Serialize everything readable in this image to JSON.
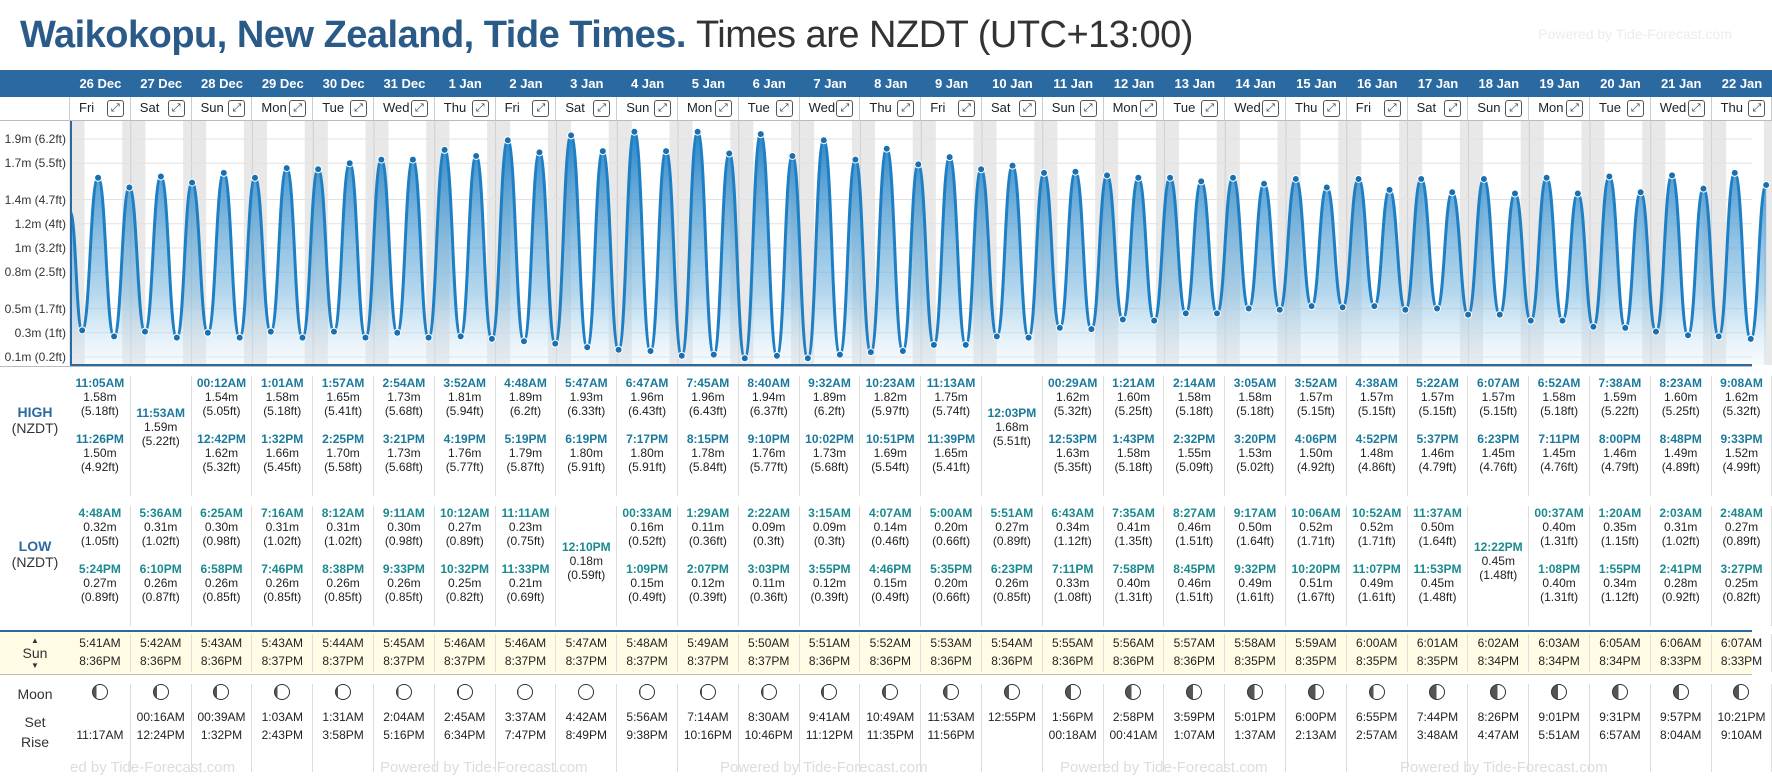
{
  "title": {
    "place": "Waikokopu, New Zealand, Tide Times.",
    "timezone": "Times are NZDT (UTC+13:00)"
  },
  "powered": "Powered by Tide-Forecast.com",
  "footer": [
    "ed by Tide-Forecast.com",
    "Powered by Tide-Forecast.com",
    "Powered by Tide-Forecast.com",
    "Powered by Tide-Forecast.com",
    "Powered by Tide-Forecast.com"
  ],
  "labels": {
    "high": "HIGH",
    "low": "LOW",
    "nzdt": "(NZDT)",
    "sun": "Sun",
    "moon": "Moon",
    "set": "Set",
    "rise": "Rise"
  },
  "y_ticks": [
    "1.9m (6.2ft)",
    "1.7m (5.5ft)",
    "1.4m (4.7ft)",
    "1.2m (4ft)",
    "1m (3.2ft)",
    "0.8m (2.5ft)",
    "0.5m (1.7ft)",
    "0.3m (1ft)",
    "0.1m (0.2ft)"
  ],
  "days": [
    {
      "date": "26 Dec",
      "dow": "Fri",
      "h1": [
        "11:05AM",
        "1.58m",
        "(5.18ft)"
      ],
      "h2": [
        "11:26PM",
        "1.50m",
        "(4.92ft)"
      ],
      "l1": [
        "4:48AM",
        "0.32m",
        "(1.05ft)"
      ],
      "l2": [
        "5:24PM",
        "0.27m",
        "(0.89ft)"
      ],
      "sunrise": "5:41AM",
      "sunset": "8:36PM",
      "moonset": "",
      "moonrise": "11:17AM"
    },
    {
      "date": "27 Dec",
      "dow": "Sat",
      "h1": [
        "11:53AM",
        "1.59m",
        "(5.22ft)"
      ],
      "h2": null,
      "l1": [
        "5:36AM",
        "0.31m",
        "(1.02ft)"
      ],
      "l2": [
        "6:10PM",
        "0.26m",
        "(0.87ft)"
      ],
      "sunrise": "5:42AM",
      "sunset": "8:36PM",
      "moonset": "00:16AM",
      "moonrise": "12:24PM"
    },
    {
      "date": "28 Dec",
      "dow": "Sun",
      "h1": [
        "00:12AM",
        "1.54m",
        "(5.05ft)"
      ],
      "h2": [
        "12:42PM",
        "1.62m",
        "(5.32ft)"
      ],
      "l1": [
        "6:25AM",
        "0.30m",
        "(0.98ft)"
      ],
      "l2": [
        "6:58PM",
        "0.26m",
        "(0.85ft)"
      ],
      "sunrise": "5:43AM",
      "sunset": "8:36PM",
      "moonset": "00:39AM",
      "moonrise": "1:32PM"
    },
    {
      "date": "29 Dec",
      "dow": "Mon",
      "h1": [
        "1:01AM",
        "1.58m",
        "(5.18ft)"
      ],
      "h2": [
        "1:32PM",
        "1.66m",
        "(5.45ft)"
      ],
      "l1": [
        "7:16AM",
        "0.31m",
        "(1.02ft)"
      ],
      "l2": [
        "7:46PM",
        "0.26m",
        "(0.85ft)"
      ],
      "sunrise": "5:43AM",
      "sunset": "8:37PM",
      "moonset": "1:03AM",
      "moonrise": "2:43PM"
    },
    {
      "date": "30 Dec",
      "dow": "Tue",
      "h1": [
        "1:57AM",
        "1.65m",
        "(5.41ft)"
      ],
      "h2": [
        "2:25PM",
        "1.70m",
        "(5.58ft)"
      ],
      "l1": [
        "8:12AM",
        "0.31m",
        "(1.02ft)"
      ],
      "l2": [
        "8:38PM",
        "0.26m",
        "(0.85ft)"
      ],
      "sunrise": "5:44AM",
      "sunset": "8:37PM",
      "moonset": "1:31AM",
      "moonrise": "3:58PM"
    },
    {
      "date": "31 Dec",
      "dow": "Wed",
      "h1": [
        "2:54AM",
        "1.73m",
        "(5.68ft)"
      ],
      "h2": [
        "3:21PM",
        "1.73m",
        "(5.68ft)"
      ],
      "l1": [
        "9:11AM",
        "0.30m",
        "(0.98ft)"
      ],
      "l2": [
        "9:33PM",
        "0.26m",
        "(0.85ft)"
      ],
      "sunrise": "5:45AM",
      "sunset": "8:37PM",
      "moonset": "2:04AM",
      "moonrise": "5:16PM"
    },
    {
      "date": "1 Jan",
      "dow": "Thu",
      "h1": [
        "3:52AM",
        "1.81m",
        "(5.94ft)"
      ],
      "h2": [
        "4:19PM",
        "1.76m",
        "(5.77ft)"
      ],
      "l1": [
        "10:12AM",
        "0.27m",
        "(0.89ft)"
      ],
      "l2": [
        "10:32PM",
        "0.25m",
        "(0.82ft)"
      ],
      "sunrise": "5:46AM",
      "sunset": "8:37PM",
      "moonset": "2:45AM",
      "moonrise": "6:34PM"
    },
    {
      "date": "2 Jan",
      "dow": "Fri",
      "h1": [
        "4:48AM",
        "1.89m",
        "(6.2ft)"
      ],
      "h2": [
        "5:19PM",
        "1.79m",
        "(5.87ft)"
      ],
      "l1": [
        "11:11AM",
        "0.23m",
        "(0.75ft)"
      ],
      "l2": [
        "11:33PM",
        "0.21m",
        "(0.69ft)"
      ],
      "sunrise": "5:46AM",
      "sunset": "8:37PM",
      "moonset": "3:37AM",
      "moonrise": "7:47PM"
    },
    {
      "date": "3 Jan",
      "dow": "Sat",
      "h1": [
        "5:47AM",
        "1.93m",
        "(6.33ft)"
      ],
      "h2": [
        "6:19PM",
        "1.80m",
        "(5.91ft)"
      ],
      "l1": [
        "12:10PM",
        "0.18m",
        "(0.59ft)"
      ],
      "l2": null,
      "sunrise": "5:47AM",
      "sunset": "8:37PM",
      "moonset": "4:42AM",
      "moonrise": "8:49PM"
    },
    {
      "date": "4 Jan",
      "dow": "Sun",
      "h1": [
        "6:47AM",
        "1.96m",
        "(6.43ft)"
      ],
      "h2": [
        "7:17PM",
        "1.80m",
        "(5.91ft)"
      ],
      "l1": [
        "00:33AM",
        "0.16m",
        "(0.52ft)"
      ],
      "l2": [
        "1:09PM",
        "0.15m",
        "(0.49ft)"
      ],
      "sunrise": "5:48AM",
      "sunset": "8:37PM",
      "moonset": "5:56AM",
      "moonrise": "9:38PM"
    },
    {
      "date": "5 Jan",
      "dow": "Mon",
      "h1": [
        "7:45AM",
        "1.96m",
        "(6.43ft)"
      ],
      "h2": [
        "8:15PM",
        "1.78m",
        "(5.84ft)"
      ],
      "l1": [
        "1:29AM",
        "0.11m",
        "(0.36ft)"
      ],
      "l2": [
        "2:07PM",
        "0.12m",
        "(0.39ft)"
      ],
      "sunrise": "5:49AM",
      "sunset": "8:37PM",
      "moonset": "7:14AM",
      "moonrise": "10:16PM"
    },
    {
      "date": "6 Jan",
      "dow": "Tue",
      "h1": [
        "8:40AM",
        "1.94m",
        "(6.37ft)"
      ],
      "h2": [
        "9:10PM",
        "1.76m",
        "(5.77ft)"
      ],
      "l1": [
        "2:22AM",
        "0.09m",
        "(0.3ft)"
      ],
      "l2": [
        "3:03PM",
        "0.11m",
        "(0.36ft)"
      ],
      "sunrise": "5:50AM",
      "sunset": "8:37PM",
      "moonset": "8:30AM",
      "moonrise": "10:46PM"
    },
    {
      "date": "7 Jan",
      "dow": "Wed",
      "h1": [
        "9:32AM",
        "1.89m",
        "(6.2ft)"
      ],
      "h2": [
        "10:02PM",
        "1.73m",
        "(5.68ft)"
      ],
      "l1": [
        "3:15AM",
        "0.09m",
        "(0.3ft)"
      ],
      "l2": [
        "3:55PM",
        "0.12m",
        "(0.39ft)"
      ],
      "sunrise": "5:51AM",
      "sunset": "8:36PM",
      "moonset": "9:41AM",
      "moonrise": "11:12PM"
    },
    {
      "date": "8 Jan",
      "dow": "Thu",
      "h1": [
        "10:23AM",
        "1.82m",
        "(5.97ft)"
      ],
      "h2": [
        "10:51PM",
        "1.69m",
        "(5.54ft)"
      ],
      "l1": [
        "4:07AM",
        "0.14m",
        "(0.46ft)"
      ],
      "l2": [
        "4:46PM",
        "0.15m",
        "(0.49ft)"
      ],
      "sunrise": "5:52AM",
      "sunset": "8:36PM",
      "moonset": "10:49AM",
      "moonrise": "11:35PM"
    },
    {
      "date": "9 Jan",
      "dow": "Fri",
      "h1": [
        "11:13AM",
        "1.75m",
        "(5.74ft)"
      ],
      "h2": [
        "11:39PM",
        "1.65m",
        "(5.41ft)"
      ],
      "l1": [
        "5:00AM",
        "0.20m",
        "(0.66ft)"
      ],
      "l2": [
        "5:35PM",
        "0.20m",
        "(0.66ft)"
      ],
      "sunrise": "5:53AM",
      "sunset": "8:36PM",
      "moonset": "11:53AM",
      "moonrise": "11:56PM"
    },
    {
      "date": "10 Jan",
      "dow": "Sat",
      "h1": [
        "12:03PM",
        "1.68m",
        "(5.51ft)"
      ],
      "h2": null,
      "l1": [
        "5:51AM",
        "0.27m",
        "(0.89ft)"
      ],
      "l2": [
        "6:23PM",
        "0.26m",
        "(0.85ft)"
      ],
      "sunrise": "5:54AM",
      "sunset": "8:36PM",
      "moonset": "12:55PM",
      "moonrise": ""
    },
    {
      "date": "11 Jan",
      "dow": "Sun",
      "h1": [
        "00:29AM",
        "1.62m",
        "(5.32ft)"
      ],
      "h2": [
        "12:53PM",
        "1.63m",
        "(5.35ft)"
      ],
      "l1": [
        "6:43AM",
        "0.34m",
        "(1.12ft)"
      ],
      "l2": [
        "7:11PM",
        "0.33m",
        "(1.08ft)"
      ],
      "sunrise": "5:55AM",
      "sunset": "8:36PM",
      "moonset": "1:56PM",
      "moonrise": "00:18AM"
    },
    {
      "date": "12 Jan",
      "dow": "Mon",
      "h1": [
        "1:21AM",
        "1.60m",
        "(5.25ft)"
      ],
      "h2": [
        "1:43PM",
        "1.58m",
        "(5.18ft)"
      ],
      "l1": [
        "7:35AM",
        "0.41m",
        "(1.35ft)"
      ],
      "l2": [
        "7:58PM",
        "0.40m",
        "(1.31ft)"
      ],
      "sunrise": "5:56AM",
      "sunset": "8:36PM",
      "moonset": "2:58PM",
      "moonrise": "00:41AM"
    },
    {
      "date": "13 Jan",
      "dow": "Tue",
      "h1": [
        "2:14AM",
        "1.58m",
        "(5.18ft)"
      ],
      "h2": [
        "2:32PM",
        "1.55m",
        "(5.09ft)"
      ],
      "l1": [
        "8:27AM",
        "0.46m",
        "(1.51ft)"
      ],
      "l2": [
        "8:45PM",
        "0.46m",
        "(1.51ft)"
      ],
      "sunrise": "5:57AM",
      "sunset": "8:36PM",
      "moonset": "3:59PM",
      "moonrise": "1:07AM"
    },
    {
      "date": "14 Jan",
      "dow": "Wed",
      "h1": [
        "3:05AM",
        "1.58m",
        "(5.18ft)"
      ],
      "h2": [
        "3:20PM",
        "1.53m",
        "(5.02ft)"
      ],
      "l1": [
        "9:17AM",
        "0.50m",
        "(1.64ft)"
      ],
      "l2": [
        "9:32PM",
        "0.49m",
        "(1.61ft)"
      ],
      "sunrise": "5:58AM",
      "sunset": "8:35PM",
      "moonset": "5:01PM",
      "moonrise": "1:37AM"
    },
    {
      "date": "15 Jan",
      "dow": "Thu",
      "h1": [
        "3:52AM",
        "1.57m",
        "(5.15ft)"
      ],
      "h2": [
        "4:06PM",
        "1.50m",
        "(4.92ft)"
      ],
      "l1": [
        "10:06AM",
        "0.52m",
        "(1.71ft)"
      ],
      "l2": [
        "10:20PM",
        "0.51m",
        "(1.67ft)"
      ],
      "sunrise": "5:59AM",
      "sunset": "8:35PM",
      "moonset": "6:00PM",
      "moonrise": "2:13AM"
    },
    {
      "date": "16 Jan",
      "dow": "Fri",
      "h1": [
        "4:38AM",
        "1.57m",
        "(5.15ft)"
      ],
      "h2": [
        "4:52PM",
        "1.48m",
        "(4.86ft)"
      ],
      "l1": [
        "10:52AM",
        "0.52m",
        "(1.71ft)"
      ],
      "l2": [
        "11:07PM",
        "0.49m",
        "(1.61ft)"
      ],
      "sunrise": "6:00AM",
      "sunset": "8:35PM",
      "moonset": "6:55PM",
      "moonrise": "2:57AM"
    },
    {
      "date": "17 Jan",
      "dow": "Sat",
      "h1": [
        "5:22AM",
        "1.57m",
        "(5.15ft)"
      ],
      "h2": [
        "5:37PM",
        "1.46m",
        "(4.79ft)"
      ],
      "l1": [
        "11:37AM",
        "0.50m",
        "(1.64ft)"
      ],
      "l2": [
        "11:53PM",
        "0.45m",
        "(1.48ft)"
      ],
      "sunrise": "6:01AM",
      "sunset": "8:35PM",
      "moonset": "7:44PM",
      "moonrise": "3:48AM"
    },
    {
      "date": "18 Jan",
      "dow": "Sun",
      "h1": [
        "6:07AM",
        "1.57m",
        "(5.15ft)"
      ],
      "h2": [
        "6:23PM",
        "1.45m",
        "(4.76ft)"
      ],
      "l1": [
        "12:22PM",
        "0.45m",
        "(1.48ft)"
      ],
      "l2": null,
      "sunrise": "6:02AM",
      "sunset": "8:34PM",
      "moonset": "8:26PM",
      "moonrise": "4:47AM"
    },
    {
      "date": "19 Jan",
      "dow": "Mon",
      "h1": [
        "6:52AM",
        "1.58m",
        "(5.18ft)"
      ],
      "h2": [
        "7:11PM",
        "1.45m",
        "(4.76ft)"
      ],
      "l1": [
        "00:37AM",
        "0.40m",
        "(1.31ft)"
      ],
      "l2": [
        "1:08PM",
        "0.40m",
        "(1.31ft)"
      ],
      "sunrise": "6:03AM",
      "sunset": "8:34PM",
      "moonset": "9:01PM",
      "moonrise": "5:51AM"
    },
    {
      "date": "20 Jan",
      "dow": "Tue",
      "h1": [
        "7:38AM",
        "1.59m",
        "(5.22ft)"
      ],
      "h2": [
        "8:00PM",
        "1.46m",
        "(4.79ft)"
      ],
      "l1": [
        "1:20AM",
        "0.35m",
        "(1.15ft)"
      ],
      "l2": [
        "1:55PM",
        "0.34m",
        "(1.12ft)"
      ],
      "sunrise": "6:05AM",
      "sunset": "8:34PM",
      "moonset": "9:31PM",
      "moonrise": "6:57AM"
    },
    {
      "date": "21 Jan",
      "dow": "Wed",
      "h1": [
        "8:23AM",
        "1.60m",
        "(5.25ft)"
      ],
      "h2": [
        "8:48PM",
        "1.49m",
        "(4.89ft)"
      ],
      "l1": [
        "2:03AM",
        "0.31m",
        "(1.02ft)"
      ],
      "l2": [
        "2:41PM",
        "0.28m",
        "(0.92ft)"
      ],
      "sunrise": "6:06AM",
      "sunset": "8:33PM",
      "moonset": "9:57PM",
      "moonrise": "8:04AM"
    },
    {
      "date": "22 Jan",
      "dow": "Thu",
      "h1": [
        "9:08AM",
        "1.62m",
        "(5.32ft)"
      ],
      "h2": [
        "9:33PM",
        "1.52m",
        "(4.99ft)"
      ],
      "l1": [
        "2:48AM",
        "0.27m",
        "(0.89ft)"
      ],
      "l2": [
        "3:27PM",
        "0.25m",
        "(0.82ft)"
      ],
      "sunrise": "6:07AM",
      "sunset": "8:33PM",
      "moonset": "10:21PM",
      "moonrise": "9:10AM"
    }
  ],
  "colors": {
    "header": "#2b6aa1",
    "tide": "#1f7fc4",
    "sunrow": "#fffbe5"
  }
}
